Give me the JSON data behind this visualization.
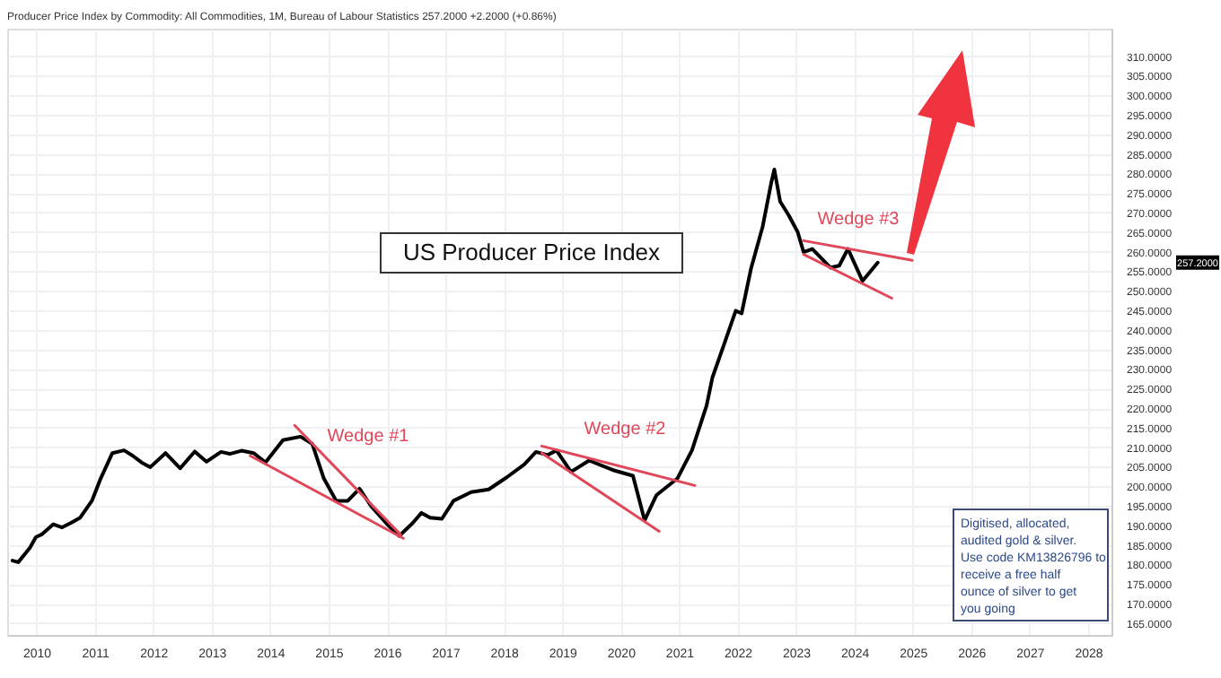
{
  "chart_data": {
    "type": "line",
    "title": "US Producer Price Index",
    "subtitle": "Producer Price Index by Commodity: All Commodities, 1M, Bureau of Labour Statistics 257.2000 +2.2000 (+0.86%)",
    "series": [
      {
        "color": "#000000",
        "x": [
          2009.59,
          2009.69,
          2009.89,
          2009.99,
          2010.09,
          2010.29,
          2010.44,
          2010.6,
          2010.75,
          2010.95,
          2011.1,
          2011.3,
          2011.5,
          2011.65,
          2011.8,
          2011.95,
          2012.21,
          2012.46,
          2012.71,
          2012.91,
          2013.16,
          2013.31,
          2013.51,
          2013.72,
          2013.92,
          2014.22,
          2014.52,
          2014.72,
          2014.92,
          2015.13,
          2015.33,
          2015.53,
          2015.73,
          2016.03,
          2016.21,
          2016.44,
          2016.59,
          2016.74,
          2016.94,
          2017.14,
          2017.44,
          2017.74,
          2018.05,
          2018.35,
          2018.55,
          2018.75,
          2018.9,
          2019.15,
          2019.46,
          2019.86,
          2020.21,
          2020.41,
          2020.61,
          2020.97,
          2021.22,
          2021.47,
          2021.57,
          2021.77,
          2021.97,
          2022.07,
          2022.23,
          2022.43,
          2022.58,
          2022.63,
          2022.73,
          2022.88,
          2023.03,
          2023.13,
          2023.28,
          2023.59,
          2023.74,
          2023.89,
          2024.14,
          2024.4
        ],
        "values": [
          181,
          180.6,
          184.3,
          187,
          187.7,
          190.3,
          189.5,
          190.7,
          192,
          196.3,
          202,
          208.5,
          209.2,
          207.8,
          206.1,
          204.9,
          208.5,
          204.6,
          208.9,
          206.3,
          208.8,
          208.3,
          209.1,
          208.5,
          206.1,
          211.8,
          212.7,
          210.9,
          202,
          196.3,
          196.3,
          199.4,
          194.9,
          189.9,
          187.3,
          190.6,
          193.2,
          192,
          191.7,
          196.3,
          198.5,
          199.2,
          202.3,
          205.6,
          208.8,
          208,
          209.2,
          203.7,
          206.6,
          204.2,
          202.7,
          191.3,
          197.7,
          202,
          209.2,
          220.6,
          227.8,
          236.3,
          244.9,
          244.2,
          255.6,
          266.4,
          277.8,
          281,
          272.8,
          269.2,
          265,
          259.9,
          260.7,
          255.9,
          256.4,
          260.7,
          252.5,
          257.2
        ]
      },
      {
        "color": "#e0485a",
        "x": [
          2014.42,
          2016.23
        ],
        "values": [
          215.6,
          187.7
        ]
      },
      {
        "color": "#e0485a",
        "x": [
          2013.66,
          2016.28
        ],
        "values": [
          207.8,
          186.7
        ]
      },
      {
        "color": "#e0485a",
        "x": [
          2018.65,
          2021.27
        ],
        "values": [
          210.3,
          200.2
        ]
      },
      {
        "color": "#e0485a",
        "x": [
          2018.65,
          2020.66
        ],
        "values": [
          208.5,
          188.5
        ]
      },
      {
        "color": "#e0485a",
        "x": [
          2023.13,
          2024.99
        ],
        "values": [
          262.8,
          257.8
        ]
      },
      {
        "color": "#e0485a",
        "x": [
          2023.13,
          2024.64
        ],
        "values": [
          259.3,
          248.1
        ]
      }
    ],
    "annotations": [
      "Wedge #1",
      "Wedge #2",
      "Wedge #3",
      "257.2000",
      "Digitised, allocated, audited gold & silver. Use code KM13826796 to receive a free half ounce of silver to get you going"
    ],
    "xlim": [
      2009.5,
      2028.4
    ],
    "xticks": [
      2010,
      2011,
      2012,
      2013,
      2014,
      2015,
      2016,
      2017,
      2018,
      2019,
      2020,
      2021,
      2022,
      2023,
      2024,
      2025,
      2026,
      2027,
      2028
    ],
    "ylim": [
      162,
      317
    ],
    "yticks": [
      {
        "value": 165,
        "label": "165.0000"
      },
      {
        "value": 170,
        "label": "170.0000"
      },
      {
        "value": 175,
        "label": "175.0000"
      },
      {
        "value": 180,
        "label": "180.0000"
      },
      {
        "value": 185,
        "label": "185.0000"
      },
      {
        "value": 190,
        "label": "190.0000"
      },
      {
        "value": 195,
        "label": "195.0000"
      },
      {
        "value": 200,
        "label": "200.0000"
      },
      {
        "value": 205,
        "label": "205.0000"
      },
      {
        "value": 210,
        "label": "210.0000"
      },
      {
        "value": 215,
        "label": "215.0000"
      },
      {
        "value": 220,
        "label": "220.0000"
      },
      {
        "value": 225,
        "label": "225.0000"
      },
      {
        "value": 230,
        "label": "230.0000"
      },
      {
        "value": 235,
        "label": "235.0000"
      },
      {
        "value": 240,
        "label": "240.0000"
      },
      {
        "value": 245,
        "label": "245.0000"
      },
      {
        "value": 250,
        "label": "250.0000"
      },
      {
        "value": 255,
        "label": "255.0000"
      },
      {
        "value": 260,
        "label": "260.0000"
      },
      {
        "value": 265,
        "label": "265.0000"
      },
      {
        "value": 270,
        "label": "270.0000"
      },
      {
        "value": 275,
        "label": "275.0000"
      },
      {
        "value": 280,
        "label": "280.0000"
      },
      {
        "value": 285,
        "label": "285.0000"
      },
      {
        "value": 290,
        "label": "290.0000"
      },
      {
        "value": 295,
        "label": "295.0000"
      },
      {
        "value": 300,
        "label": "300.0000"
      },
      {
        "value": 305,
        "label": "305.0000"
      },
      {
        "value": 310,
        "label": "310.0000"
      }
    ],
    "grid": true,
    "line_style": "solid"
  }
}
